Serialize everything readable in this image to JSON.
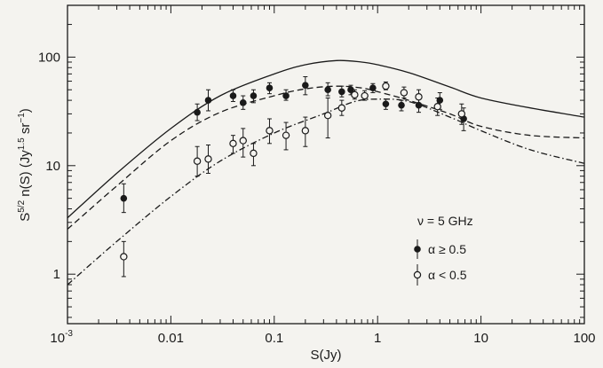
{
  "chart_data": {
    "type": "scatter",
    "xscale": "log",
    "yscale": "log",
    "xlim": [
      0.001,
      100
    ],
    "ylim": [
      0.35,
      300
    ],
    "xlabel": "S(Jy)",
    "ylabel": {
      "prefix": "S",
      "prefix_sup": "5/2",
      "middle": " n(S) (Jy",
      "middle_sup": "1.5",
      "suffix": " sr",
      "suffix_sup": "−1",
      "close": ")"
    },
    "x_ticks": [
      {
        "value": 0.001,
        "base": "10",
        "exp": "-3"
      },
      {
        "value": 0.01,
        "label": "0.01"
      },
      {
        "value": 0.1,
        "label": "0.1"
      },
      {
        "value": 1,
        "label": "1"
      },
      {
        "value": 10,
        "label": "10"
      },
      {
        "value": 100,
        "label": "100"
      }
    ],
    "y_ticks": [
      {
        "value": 1,
        "label": "1"
      },
      {
        "value": 10,
        "label": "10"
      },
      {
        "value": 100,
        "label": "100"
      }
    ],
    "grid": false,
    "legend": {
      "position": "bottom-right",
      "title": "ν = 5 GHz",
      "items": [
        {
          "marker": "filled",
          "label": "α ≥ 0.5"
        },
        {
          "marker": "open",
          "label": "α < 0.5"
        }
      ]
    },
    "series": [
      {
        "marker": "filled",
        "points": [
          {
            "x": 0.0035,
            "y": 5.0,
            "err": [
              3.7,
              6.8
            ]
          },
          {
            "x": 0.018,
            "y": 31,
            "err": [
              26,
              37
            ]
          },
          {
            "x": 0.023,
            "y": 40,
            "err": [
              32,
              50
            ]
          },
          {
            "x": 0.04,
            "y": 44,
            "err": [
              39,
              50
            ]
          },
          {
            "x": 0.05,
            "y": 38,
            "err": [
              33,
              44
            ]
          },
          {
            "x": 0.063,
            "y": 44,
            "err": [
              38,
              50
            ]
          },
          {
            "x": 0.09,
            "y": 52,
            "err": [
              46,
              58
            ]
          },
          {
            "x": 0.13,
            "y": 44,
            "err": [
              40,
              50
            ]
          },
          {
            "x": 0.2,
            "y": 55,
            "err": [
              45,
              66
            ]
          },
          {
            "x": 0.33,
            "y": 50,
            "err": [
              44,
              58
            ]
          },
          {
            "x": 0.45,
            "y": 48,
            "err": [
              43,
              54
            ]
          },
          {
            "x": 0.55,
            "y": 50,
            "err": [
              45,
              55
            ]
          },
          {
            "x": 0.9,
            "y": 52,
            "err": [
              47,
              57
            ]
          },
          {
            "x": 1.2,
            "y": 37,
            "err": [
              33,
              41
            ]
          },
          {
            "x": 1.7,
            "y": 36,
            "err": [
              32,
              40
            ]
          },
          {
            "x": 2.5,
            "y": 36,
            "err": [
              31,
              41
            ]
          },
          {
            "x": 4,
            "y": 40,
            "err": [
              33,
              47
            ]
          },
          {
            "x": 6.8,
            "y": 27,
            "err": [
              21,
              34
            ]
          }
        ]
      },
      {
        "marker": "open",
        "points": [
          {
            "x": 0.0035,
            "y": 1.45,
            "err": [
              0.95,
              2.0
            ]
          },
          {
            "x": 0.018,
            "y": 11,
            "err": [
              8,
              15
            ]
          },
          {
            "x": 0.023,
            "y": 11.5,
            "err": [
              8.5,
              15.5
            ]
          },
          {
            "x": 0.04,
            "y": 16,
            "err": [
              13,
              19
            ]
          },
          {
            "x": 0.05,
            "y": 17,
            "err": [
              12,
              22
            ]
          },
          {
            "x": 0.063,
            "y": 13,
            "err": [
              10,
              16
            ]
          },
          {
            "x": 0.09,
            "y": 21,
            "err": [
              16,
              27
            ]
          },
          {
            "x": 0.13,
            "y": 19,
            "err": [
              14,
              25
            ]
          },
          {
            "x": 0.2,
            "y": 21,
            "err": [
              15,
              28
            ]
          },
          {
            "x": 0.33,
            "y": 29,
            "err": [
              18,
              42
            ]
          },
          {
            "x": 0.45,
            "y": 34,
            "err": [
              29,
              40
            ]
          },
          {
            "x": 0.6,
            "y": 45,
            "err": [
              41,
              50
            ]
          },
          {
            "x": 0.75,
            "y": 44,
            "err": [
              40,
              49
            ]
          },
          {
            "x": 1.2,
            "y": 54,
            "err": [
              50,
              59
            ]
          },
          {
            "x": 1.8,
            "y": 47,
            "err": [
              42,
              53
            ]
          },
          {
            "x": 2.5,
            "y": 43,
            "err": [
              37,
              50
            ]
          },
          {
            "x": 3.8,
            "y": 35,
            "err": [
              29,
              42
            ]
          },
          {
            "x": 6.5,
            "y": 30,
            "err": [
              24,
              37
            ]
          }
        ]
      }
    ],
    "curves": [
      {
        "style": "solid",
        "points": [
          [
            0.001,
            3.3
          ],
          [
            0.003,
            8.5
          ],
          [
            0.01,
            22
          ],
          [
            0.03,
            44
          ],
          [
            0.1,
            70
          ],
          [
            0.2,
            85
          ],
          [
            0.4,
            93
          ],
          [
            0.7,
            90
          ],
          [
            1,
            85
          ],
          [
            2,
            72
          ],
          [
            5,
            53
          ],
          [
            10,
            42
          ],
          [
            30,
            34
          ],
          [
            100,
            28
          ]
        ]
      },
      {
        "style": "dashed",
        "points": [
          [
            0.001,
            2.6
          ],
          [
            0.003,
            6.5
          ],
          [
            0.01,
            17
          ],
          [
            0.03,
            31
          ],
          [
            0.1,
            44
          ],
          [
            0.2,
            51
          ],
          [
            0.4,
            54
          ],
          [
            0.7,
            52
          ],
          [
            1,
            48
          ],
          [
            2,
            40
          ],
          [
            5,
            30
          ],
          [
            10,
            23
          ],
          [
            30,
            19
          ],
          [
            100,
            18
          ]
        ]
      },
      {
        "style": "dashdot",
        "points": [
          [
            0.001,
            0.8
          ],
          [
            0.003,
            2.0
          ],
          [
            0.01,
            5.2
          ],
          [
            0.03,
            11
          ],
          [
            0.1,
            20
          ],
          [
            0.3,
            30
          ],
          [
            0.6,
            39
          ],
          [
            1,
            41
          ],
          [
            2,
            39
          ],
          [
            5,
            28
          ],
          [
            10,
            21
          ],
          [
            30,
            14
          ],
          [
            100,
            10.5
          ]
        ]
      }
    ]
  }
}
